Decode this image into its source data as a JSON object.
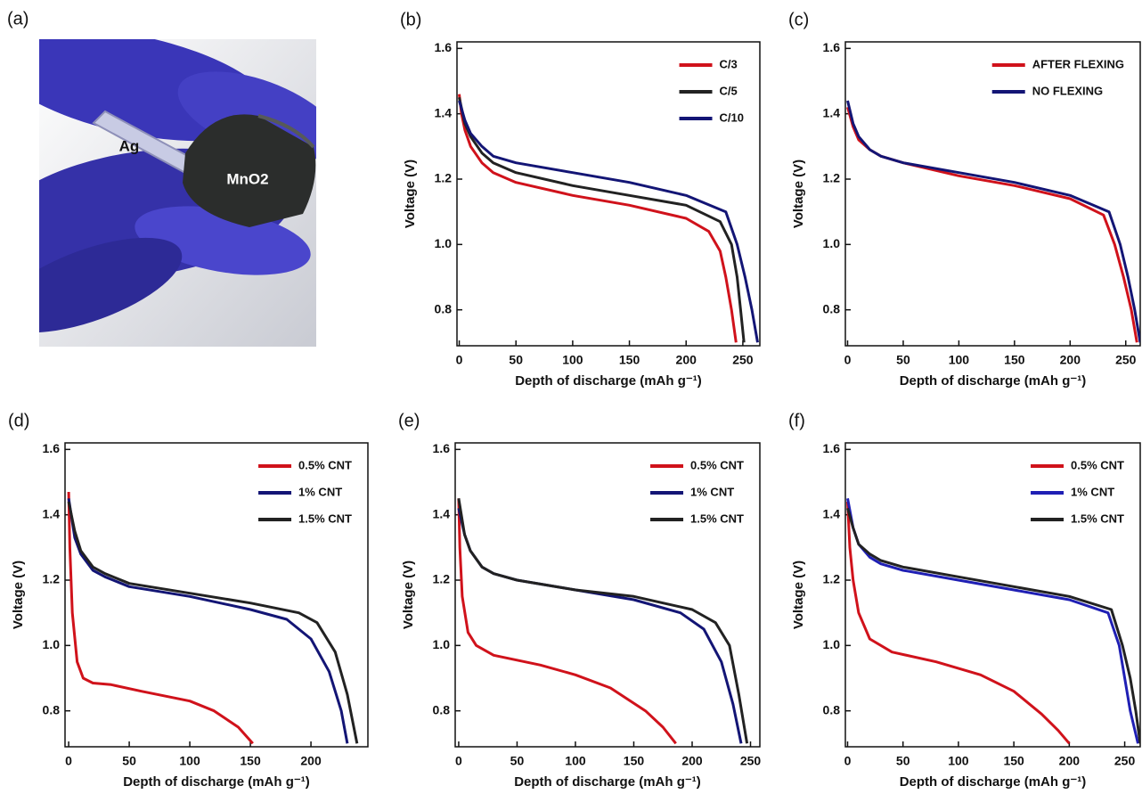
{
  "photo": {
    "label": "(a)",
    "texts": [
      "Ag",
      "MnO2"
    ]
  },
  "chart_data": [
    {
      "type": "line",
      "label": "(b)",
      "xlabel": "Depth of discharge (mAh g⁻¹)",
      "ylabel": "Voltage  (V)",
      "xlim": [
        -2,
        265
      ],
      "ylim": [
        0.69,
        1.62
      ],
      "xticks": [
        0,
        50,
        100,
        150,
        200,
        250
      ],
      "yticks": [
        0.8,
        {
          "value": 1,
          "label": "1.0"
        },
        1.2,
        1.4,
        1.6
      ],
      "legend": "upper right",
      "series": [
        {
          "name": "C/3",
          "color": "#d0121b",
          "x": [
            0,
            2,
            5,
            10,
            20,
            30,
            50,
            100,
            150,
            200,
            220,
            230,
            235,
            240,
            244
          ],
          "values": [
            1.46,
            1.4,
            1.35,
            1.3,
            1.25,
            1.22,
            1.19,
            1.15,
            1.12,
            1.08,
            1.04,
            0.98,
            0.9,
            0.8,
            0.7
          ]
        },
        {
          "name": "C/5",
          "color": "#222222",
          "x": [
            0,
            5,
            10,
            20,
            30,
            50,
            100,
            150,
            200,
            230,
            240,
            245,
            248,
            251
          ],
          "values": [
            1.45,
            1.37,
            1.33,
            1.28,
            1.25,
            1.22,
            1.18,
            1.15,
            1.12,
            1.07,
            1.0,
            0.9,
            0.8,
            0.7
          ]
        },
        {
          "name": "C/10",
          "color": "#131575",
          "x": [
            0,
            5,
            10,
            20,
            30,
            50,
            100,
            150,
            200,
            235,
            245,
            252,
            258,
            263
          ],
          "values": [
            1.44,
            1.38,
            1.34,
            1.3,
            1.27,
            1.25,
            1.22,
            1.19,
            1.15,
            1.1,
            1.0,
            0.9,
            0.8,
            0.7
          ]
        }
      ]
    },
    {
      "type": "line",
      "label": "(c)",
      "xlabel": "Depth of discharge (mAh g⁻¹)",
      "ylabel": "Voltage  (V)",
      "xlim": [
        -2,
        263
      ],
      "ylim": [
        0.69,
        1.62
      ],
      "xticks": [
        0,
        50,
        100,
        150,
        200,
        250
      ],
      "yticks": [
        0.8,
        {
          "value": 1,
          "label": "1.0"
        },
        1.2,
        1.4,
        1.6
      ],
      "legend": "upper right",
      "series": [
        {
          "name": "AFTER FLEXING",
          "color": "#d0121b",
          "x": [
            0,
            5,
            10,
            20,
            30,
            50,
            100,
            150,
            200,
            230,
            240,
            248,
            255,
            260
          ],
          "values": [
            1.42,
            1.36,
            1.32,
            1.29,
            1.27,
            1.25,
            1.21,
            1.18,
            1.14,
            1.09,
            1.0,
            0.9,
            0.8,
            0.7
          ]
        },
        {
          "name": "NO FLEXING",
          "color": "#131575",
          "x": [
            0,
            5,
            10,
            20,
            30,
            50,
            100,
            150,
            200,
            235,
            245,
            252,
            258,
            263
          ],
          "values": [
            1.44,
            1.37,
            1.33,
            1.29,
            1.27,
            1.25,
            1.22,
            1.19,
            1.15,
            1.1,
            1.0,
            0.9,
            0.8,
            0.7
          ]
        }
      ]
    },
    {
      "type": "line",
      "label": "(d)",
      "xlabel": "Depth of discharge (mAh g⁻¹)",
      "ylabel": "Voltage  (V)",
      "xlim": [
        -3,
        247
      ],
      "ylim": [
        0.69,
        1.62
      ],
      "xticks": [
        0,
        50,
        100,
        150,
        200
      ],
      "yticks": [
        0.8,
        {
          "value": 1,
          "label": "1.0"
        },
        1.2,
        1.4,
        1.6
      ],
      "legend": "upper right",
      "series": [
        {
          "name": "0.5% CNT",
          "color": "#d0121b",
          "x": [
            0,
            1,
            3,
            7,
            12,
            20,
            35,
            60,
            100,
            120,
            140,
            152
          ],
          "values": [
            1.47,
            1.3,
            1.1,
            0.95,
            0.9,
            0.885,
            0.88,
            0.86,
            0.83,
            0.8,
            0.75,
            0.7
          ]
        },
        {
          "name": "1% CNT",
          "color": "#131575",
          "x": [
            0,
            5,
            10,
            20,
            30,
            50,
            100,
            150,
            180,
            200,
            215,
            225,
            230
          ],
          "values": [
            1.45,
            1.33,
            1.28,
            1.23,
            1.21,
            1.18,
            1.15,
            1.11,
            1.08,
            1.02,
            0.92,
            0.8,
            0.7
          ]
        },
        {
          "name": "1.5% CNT",
          "color": "#222222",
          "x": [
            0,
            5,
            10,
            20,
            30,
            50,
            100,
            150,
            190,
            205,
            220,
            230,
            238
          ],
          "values": [
            1.44,
            1.35,
            1.29,
            1.24,
            1.22,
            1.19,
            1.16,
            1.13,
            1.1,
            1.07,
            0.98,
            0.85,
            0.7
          ]
        }
      ]
    },
    {
      "type": "line",
      "label": "(e)",
      "xlabel": "Depth of discharge (mAh g⁻¹)",
      "ylabel": "Voltage  (V)",
      "xlim": [
        -3,
        258
      ],
      "ylim": [
        0.69,
        1.62
      ],
      "xticks": [
        0,
        50,
        100,
        150,
        200,
        250
      ],
      "yticks": [
        0.8,
        {
          "value": 1,
          "label": "1.0"
        },
        1.2,
        1.4,
        1.6
      ],
      "legend": "upper right",
      "series": [
        {
          "name": "0.5% CNT",
          "color": "#d0121b",
          "x": [
            0,
            1,
            3,
            8,
            15,
            30,
            70,
            100,
            130,
            160,
            175,
            186
          ],
          "values": [
            1.45,
            1.3,
            1.15,
            1.04,
            1.0,
            0.97,
            0.94,
            0.91,
            0.87,
            0.8,
            0.75,
            0.7
          ]
        },
        {
          "name": "1% CNT",
          "color": "#131575",
          "x": [
            0,
            5,
            10,
            20,
            30,
            50,
            100,
            150,
            190,
            210,
            225,
            235,
            242
          ],
          "values": [
            1.42,
            1.34,
            1.29,
            1.24,
            1.22,
            1.2,
            1.17,
            1.14,
            1.1,
            1.05,
            0.95,
            0.82,
            0.7
          ]
        },
        {
          "name": "1.5% CNT",
          "color": "#222222",
          "x": [
            0,
            5,
            10,
            20,
            30,
            50,
            100,
            150,
            200,
            220,
            232,
            240,
            247
          ],
          "values": [
            1.45,
            1.34,
            1.29,
            1.24,
            1.22,
            1.2,
            1.17,
            1.15,
            1.11,
            1.07,
            1.0,
            0.85,
            0.7
          ]
        }
      ]
    },
    {
      "type": "line",
      "label": "(f)",
      "xlabel": "Depth of discharge (mAh g⁻¹)",
      "ylabel": "Voltage  (V)",
      "xlim": [
        -2,
        264
      ],
      "ylim": [
        0.69,
        1.62
      ],
      "xticks": [
        0,
        50,
        100,
        150,
        200,
        250
      ],
      "yticks": [
        0.8,
        {
          "value": 1,
          "label": "1.0"
        },
        1.2,
        1.4,
        1.6
      ],
      "legend": "upper right",
      "series": [
        {
          "name": "0.5% CNT",
          "color": "#d0121b",
          "x": [
            0,
            2,
            5,
            10,
            20,
            40,
            80,
            120,
            150,
            175,
            190,
            200
          ],
          "values": [
            1.44,
            1.3,
            1.2,
            1.1,
            1.02,
            0.98,
            0.95,
            0.91,
            0.86,
            0.79,
            0.74,
            0.7
          ]
        },
        {
          "name": "1% CNT",
          "color": "#1f1fb4",
          "x": [
            0,
            5,
            10,
            20,
            30,
            50,
            100,
            150,
            200,
            235,
            245,
            250,
            255,
            262
          ],
          "values": [
            1.45,
            1.36,
            1.31,
            1.27,
            1.25,
            1.23,
            1.2,
            1.17,
            1.14,
            1.1,
            1.0,
            0.9,
            0.8,
            0.7
          ]
        },
        {
          "name": "1.5% CNT",
          "color": "#222222",
          "x": [
            0,
            5,
            10,
            20,
            30,
            50,
            100,
            150,
            200,
            238,
            248,
            255,
            260,
            264
          ],
          "values": [
            1.42,
            1.36,
            1.31,
            1.28,
            1.26,
            1.24,
            1.21,
            1.18,
            1.15,
            1.11,
            1.0,
            0.9,
            0.8,
            0.7
          ]
        }
      ]
    }
  ]
}
